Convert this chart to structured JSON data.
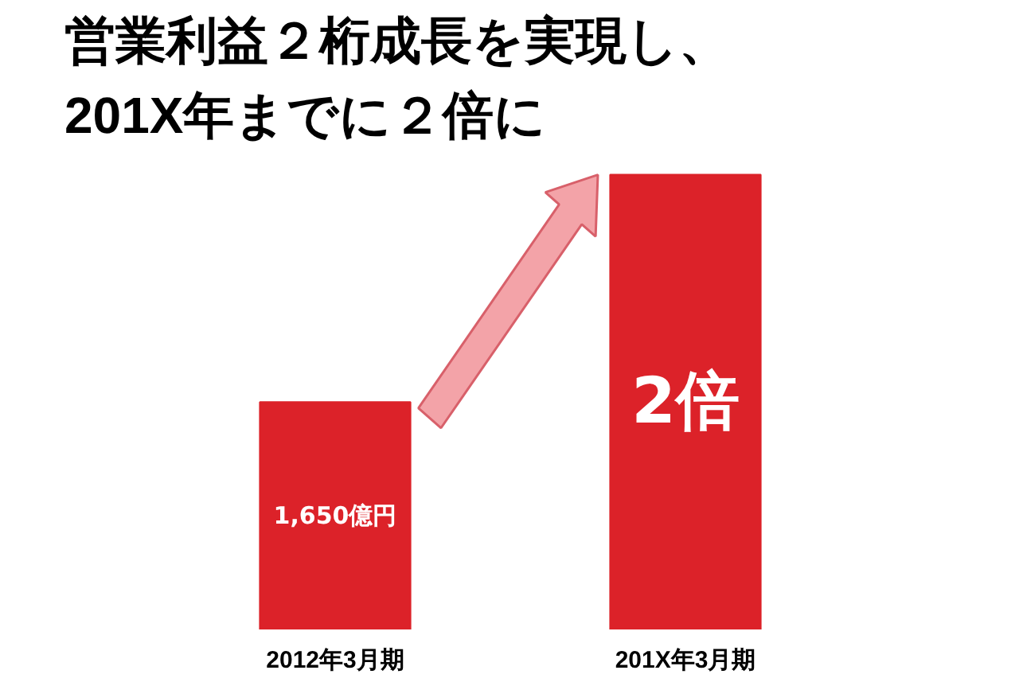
{
  "chart_data": {
    "type": "bar",
    "title": "営業利益２桁成長を実現し、\n201X年までに２倍に",
    "categories": [
      "2012年3月期",
      "201X年3月期"
    ],
    "values": [
      1650,
      3300
    ],
    "value_labels": [
      "1,650億円",
      null
    ],
    "annotations": [
      "2倍"
    ],
    "color": "#dc2229"
  }
}
